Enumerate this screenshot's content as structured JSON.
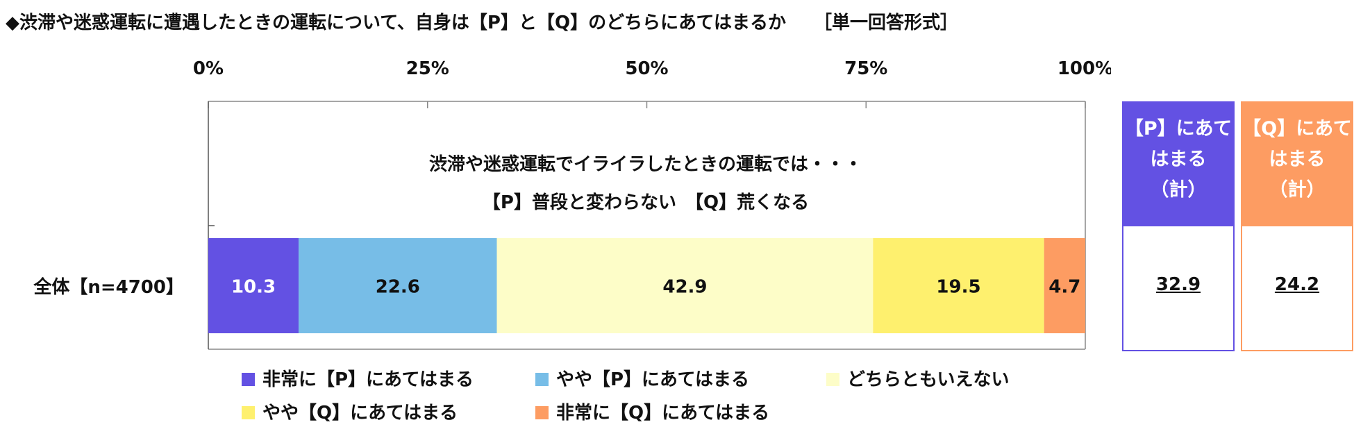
{
  "title": "◆渋滞や迷惑運転に遭遇したときの運転について、自身は【P】と【Q】のどちらにあてはまるか",
  "answer_format": "［単一回答形式］",
  "question_note_line1": "渋滞や迷惑運転でイライラしたときの運転では・・・",
  "question_note_line2": "【P】普段と変わらない　【Q】荒くなる",
  "colors": {
    "very_p": "#6351e3",
    "somewhat_p": "#77bde7",
    "neither": "#fdfdc8",
    "somewhat_q": "#fef06e",
    "very_q": "#fd9c62"
  },
  "chart_data": {
    "type": "bar",
    "orientation": "horizontal",
    "stacked": true,
    "categories": [
      "全体【n=4700】"
    ],
    "series": [
      {
        "name": "非常に【P】にあてはまる",
        "values": [
          10.3
        ],
        "color": "#6351e3",
        "label_color": "#ffffff"
      },
      {
        "name": "やや【P】にあてはまる",
        "values": [
          22.6
        ],
        "color": "#77bde7",
        "label_color": "#111111"
      },
      {
        "name": "どちらともいえない",
        "values": [
          42.9
        ],
        "color": "#fdfdc8",
        "label_color": "#111111"
      },
      {
        "name": "やや【Q】にあてはまる",
        "values": [
          19.5
        ],
        "color": "#fef06e",
        "label_color": "#111111"
      },
      {
        "name": "非常に【Q】にあてはまる",
        "values": [
          4.7
        ],
        "color": "#fd9c62",
        "label_color": "#111111"
      }
    ],
    "x_ticks": [
      "0%",
      "25%",
      "50%",
      "75%",
      "100%"
    ],
    "xlim": [
      0,
      100
    ],
    "legend_position": "bottom"
  },
  "summary": {
    "p": {
      "line1": "【P】にあて",
      "line2": "はまる",
      "line3": "（計）",
      "value": "32.9",
      "color": "#6351e3"
    },
    "q": {
      "line1": "【Q】にあて",
      "line2": "はまる",
      "line3": "（計）",
      "value": "24.2",
      "color": "#fd9c62"
    }
  }
}
